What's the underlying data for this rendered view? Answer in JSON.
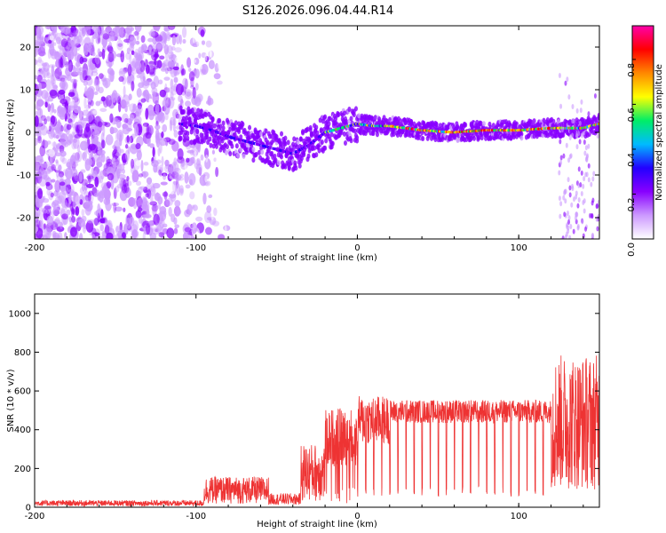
{
  "title": "S126.2026.096.04.44.R14",
  "chart_data": [
    {
      "type": "heatmap",
      "name": "spectrogram",
      "xlabel": "Height of straight line (km)",
      "ylabel": "Frequency (Hz)",
      "xlim": [
        -200,
        150
      ],
      "ylim": [
        -25,
        25
      ],
      "xticks": [
        -200,
        -100,
        0,
        100
      ],
      "yticks": [
        -20,
        -10,
        0,
        10,
        20
      ],
      "ridge": {
        "x": [
          -110,
          -100,
          -90,
          -80,
          -70,
          -60,
          -50,
          -40,
          -30,
          -20,
          -10,
          0,
          10,
          20,
          40,
          60,
          80,
          100,
          120,
          140,
          150
        ],
        "y": [
          2,
          1.5,
          0.5,
          -1,
          -2,
          -3,
          -4,
          -5,
          -3,
          0,
          1,
          2,
          1.5,
          1.5,
          0.5,
          0,
          0.5,
          0.5,
          1,
          1,
          2
        ]
      },
      "colorbar": {
        "label": "Normalized spectral amplitude",
        "range": [
          0,
          0.95
        ],
        "ticks": [
          0.0,
          0.2,
          0.4,
          0.6,
          0.8
        ],
        "colors": [
          "#ffffff",
          "#cc99ff",
          "#8800ff",
          "#2200ff",
          "#00bbff",
          "#00ee66",
          "#ffff00",
          "#ff8800",
          "#ff0000",
          "#ff00aa"
        ]
      }
    },
    {
      "type": "line",
      "name": "snr",
      "xlabel": "Height of straight line (km)",
      "ylabel": "SNR (10 * v/v)",
      "xlim": [
        -200,
        150
      ],
      "ylim": [
        0,
        1100
      ],
      "xticks": [
        -200,
        -100,
        0,
        100
      ],
      "yticks": [
        0,
        200,
        400,
        600,
        800,
        1000
      ],
      "color": "#ee3333",
      "segments": [
        {
          "x0": -200,
          "x1": -95,
          "base": 15,
          "amp": 30
        },
        {
          "x0": -95,
          "x1": -55,
          "base": 60,
          "amp": 140
        },
        {
          "x0": -55,
          "x1": -35,
          "base": 30,
          "amp": 60
        },
        {
          "x0": -35,
          "x1": -20,
          "base": 120,
          "amp": 300
        },
        {
          "x0": -20,
          "x1": 0,
          "base": 300,
          "amp": 300
        },
        {
          "x0": 0,
          "x1": 20,
          "base": 400,
          "amp": 250
        },
        {
          "x0": 20,
          "x1": 120,
          "base": 470,
          "amp": 120
        },
        {
          "x0": 120,
          "x1": 150,
          "base": 300,
          "amp": 700
        }
      ],
      "dropouts_every_km": 5
    }
  ]
}
